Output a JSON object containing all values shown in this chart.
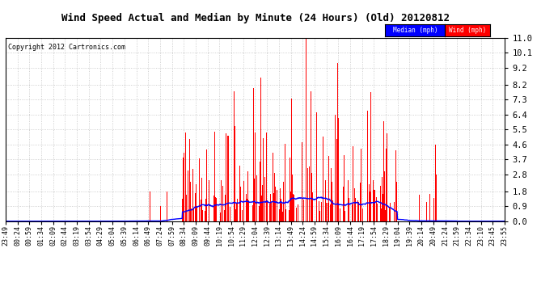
{
  "title": "Wind Speed Actual and Median by Minute (24 Hours) (Old) 20120812",
  "copyright": "Copyright 2012 Cartronics.com",
  "yticks": [
    0.0,
    0.9,
    1.8,
    2.8,
    3.7,
    4.6,
    5.5,
    6.4,
    7.3,
    8.2,
    9.2,
    10.1,
    11.0
  ],
  "ymin": 0.0,
  "ymax": 11.0,
  "legend_labels": [
    "Median (mph)",
    "Wind (mph)"
  ],
  "legend_colors": [
    "blue",
    "red"
  ],
  "wind_color": "red",
  "median_color": "blue",
  "bg_color": "white",
  "grid_color": "#bbbbbb",
  "title_fontsize": 9,
  "n_minutes": 1440,
  "xtick_labels": [
    "23:49",
    "00:24",
    "00:59",
    "01:34",
    "02:09",
    "02:44",
    "03:19",
    "03:54",
    "04:29",
    "05:04",
    "05:39",
    "06:14",
    "06:49",
    "07:24",
    "07:59",
    "08:34",
    "09:09",
    "09:44",
    "10:19",
    "10:54",
    "11:29",
    "12:04",
    "12:39",
    "13:14",
    "13:49",
    "14:24",
    "14:59",
    "15:34",
    "16:09",
    "16:44",
    "17:19",
    "17:54",
    "18:29",
    "19:04",
    "19:39",
    "20:14",
    "20:49",
    "21:24",
    "21:59",
    "22:34",
    "23:10",
    "23:45",
    "23:55"
  ]
}
